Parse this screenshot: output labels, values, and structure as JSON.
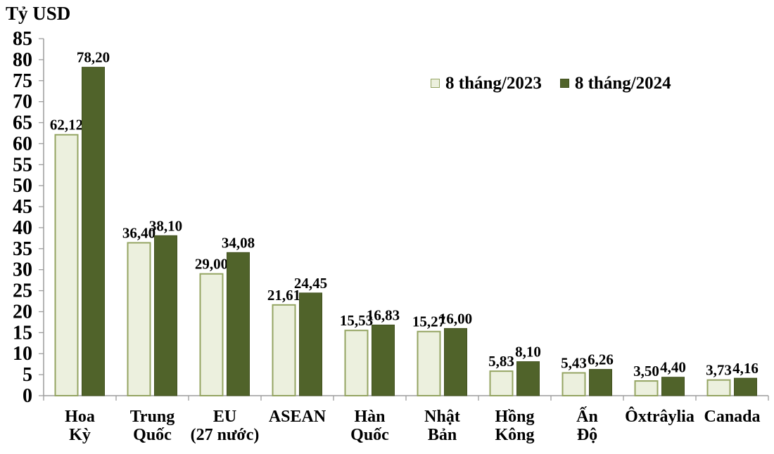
{
  "chart_data": {
    "type": "bar",
    "title": "Tỷ USD",
    "ylabel": "Tỷ USD",
    "xlabel": "",
    "ylim": [
      0,
      85
    ],
    "ytick_step": 5,
    "grid": false,
    "legend_position": "top-right",
    "decimal_separator": ",",
    "axis_color": "#9C9C9C",
    "categories": [
      "Hoa\nKỳ",
      "Trung\nQuốc",
      "EU\n(27 nước)",
      "ASEAN",
      "Hàn\nQuốc",
      "Nhật\nBản",
      "Hồng\nKông",
      "Ấn\nĐộ",
      "Ôxtrâylia",
      "Canada"
    ],
    "series": [
      {
        "name": "8 tháng/2023",
        "fill": "#ECF0DE",
        "stroke": "#94A462",
        "values": [
          62.12,
          36.4,
          29.0,
          21.61,
          15.53,
          15.27,
          5.83,
          5.43,
          3.5,
          3.73
        ],
        "labels": [
          "62,12",
          "36,40",
          "29,00",
          "21,61",
          "15,53",
          "15,27",
          "5,83",
          "5,43",
          "3,50",
          "3,73"
        ]
      },
      {
        "name": "8 tháng/2024",
        "fill": "#50632A",
        "stroke": "#42511F",
        "values": [
          78.2,
          38.1,
          34.08,
          24.45,
          16.83,
          16.0,
          8.1,
          6.26,
          4.4,
          4.16
        ],
        "labels": [
          "78,20",
          "38,10",
          "34,08",
          "24,45",
          "16,83",
          "16,00",
          "8,10",
          "6,26",
          "4,40",
          "4,16"
        ]
      }
    ]
  }
}
